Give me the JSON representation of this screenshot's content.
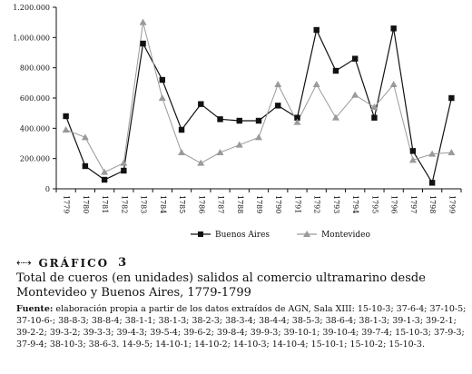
{
  "chart_data": {
    "type": "line",
    "x": [
      "1779",
      "1780",
      "1781",
      "1782",
      "1783",
      "1784",
      "1785",
      "1786",
      "1787",
      "1788",
      "1789",
      "1790",
      "1791",
      "1792",
      "1793",
      "1794",
      "1795",
      "1796",
      "1797",
      "1798",
      "1799"
    ],
    "ylim": [
      0,
      1200000
    ],
    "yticks": [
      "0",
      "200.000",
      "400.000",
      "600.000",
      "800.000",
      "1.000.000",
      "1.200.000"
    ],
    "grid": false,
    "legend_position": "bottom",
    "series": [
      {
        "name": "Buenos Aires",
        "color": "#111111",
        "marker": "square",
        "values": [
          480000,
          150000,
          60000,
          120000,
          960000,
          720000,
          390000,
          560000,
          460000,
          450000,
          450000,
          550000,
          470000,
          1050000,
          780000,
          860000,
          470000,
          1060000,
          250000,
          40000,
          600000
        ]
      },
      {
        "name": "Montevideo",
        "color": "#9a9a9a",
        "marker": "triangle",
        "values": [
          390000,
          340000,
          110000,
          170000,
          1100000,
          600000,
          240000,
          170000,
          240000,
          290000,
          340000,
          690000,
          440000,
          690000,
          470000,
          620000,
          540000,
          690000,
          190000,
          230000,
          240000
        ]
      }
    ]
  },
  "caption": {
    "icon": "arrows-icon",
    "label": "GRÁFICO",
    "number": "3",
    "title": "Total de cueros (en unidades) salidos al comercio ultramarino desde Montevideo y Buenos Aires, 1779-1799",
    "source_label": "Fuente:",
    "source_text": " elaboración propia a partir de los datos extraídos de AGN, Sala XIII: 15-10-3; 37-6-4; 37-10-5; 37-10-6-; 38-8-3; 38-8-4; 38-1-1; 38-1-3; 38-2-3; 38-3-4; 38-4-4; 38-5-3; 38-6-4; 38-1-3; 39-1-3; 39-2-1; 39-2-2; 39-3-2; 39-3-3; 39-4-3; 39-5-4; 39-6-2; 39-8-4; 39-9-3; 39-10-1; 39-10-4; 39-7-4; 15-10-3; 37-9-3; 37-9-4; 38-10-3; 38-6-3. 14-9-5; 14-10-1; 14-10-2; 14-10-3; 14-10-4; 15-10-1; 15-10-2; 15-10-3."
  }
}
